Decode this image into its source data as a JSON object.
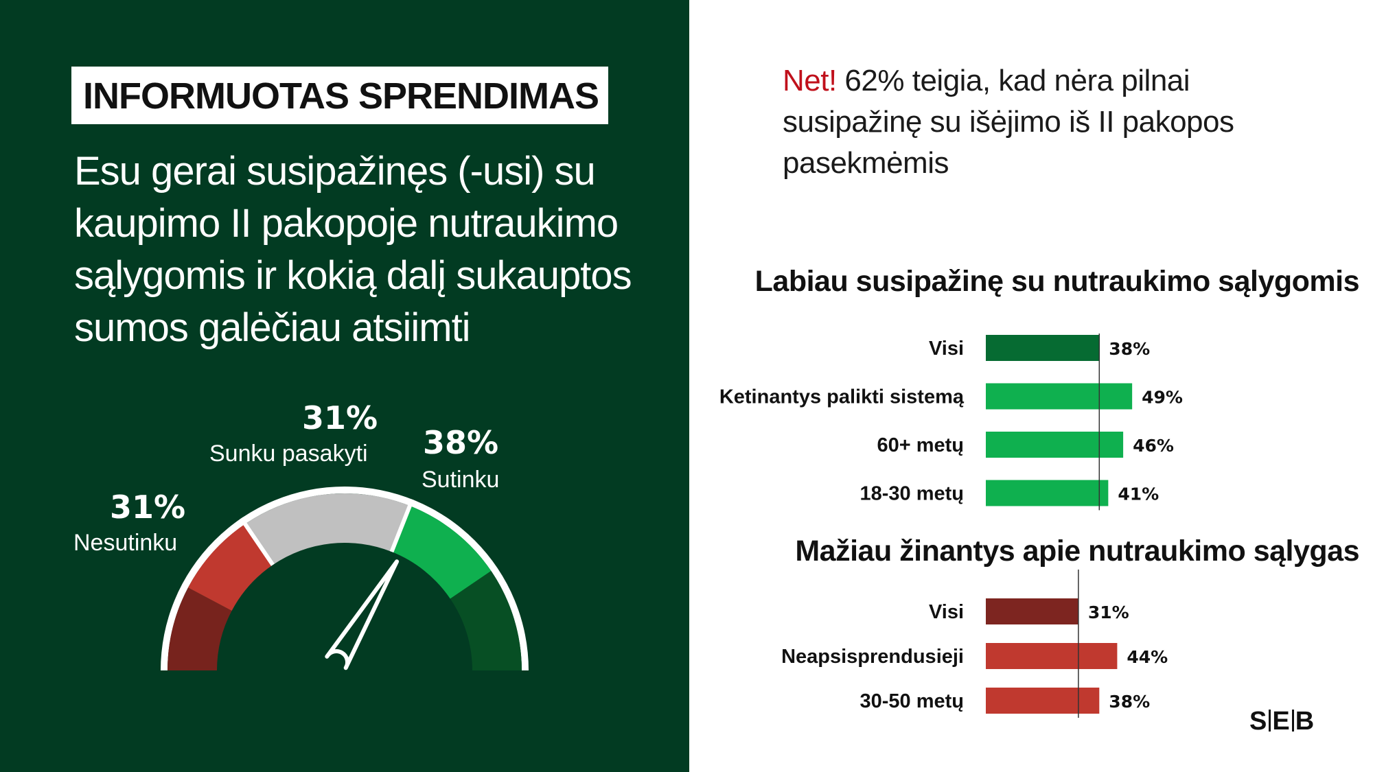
{
  "left": {
    "badge": "INFORMUOTAS SPRENDIMAS",
    "statement": "Esu gerai susipažinęs (-usi) su kaupimo II pakopoje nutraukimo sąlygomis ir kokią dalį sukauptos sumos galėčiau atsiimti",
    "gauge": [
      {
        "pct": "31%",
        "label": "Nesutinku",
        "value": 31,
        "color": "#c0392f"
      },
      {
        "pct": "31%",
        "label": "Sunku pasakyti",
        "value": 31,
        "color": "#c0c0c0"
      },
      {
        "pct": "38%",
        "label": "Sutinku",
        "value": 38,
        "color": "#0fb04f"
      }
    ]
  },
  "right": {
    "highlight_net": "Net!",
    "highlight_text": " 62% teigia, kad nėra pilnai susipažinę su išėjimo iš II pakopos pasekmėmis"
  },
  "chart_data": [
    {
      "type": "bar",
      "orientation": "horizontal",
      "title": "Labiau susipažinę su nutraukimo sąlygomis",
      "categories": [
        "Visi",
        "Ketinantys palikti sistemą",
        "60+ metų",
        "18-30 metų"
      ],
      "values": [
        38,
        49,
        46,
        41
      ],
      "value_labels": [
        "38%",
        "49%",
        "46%",
        "41%"
      ],
      "colors": [
        "#066b32",
        "#0fb04f",
        "#0fb04f",
        "#0fb04f"
      ],
      "reference_value": 38
    },
    {
      "type": "bar",
      "orientation": "horizontal",
      "title": "Mažiau žinantys apie nutraukimo sąlygas",
      "categories": [
        "Visi",
        "Neapsisprendusieji",
        "30-50 metų"
      ],
      "values": [
        31,
        44,
        38
      ],
      "value_labels": [
        "31%",
        "44%",
        "38%"
      ],
      "colors": [
        "#7d2520",
        "#c0392f",
        "#c0392f"
      ],
      "reference_value": 31
    }
  ],
  "logo": "SEB"
}
